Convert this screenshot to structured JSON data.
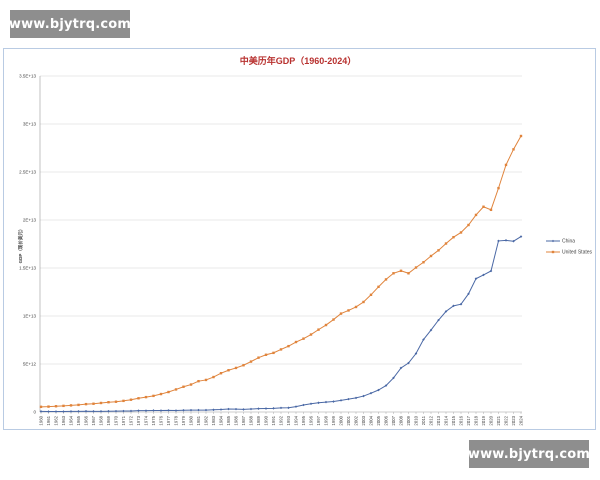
{
  "watermark": {
    "text": "www.bjytrq.com"
  },
  "chart_data": {
    "type": "line",
    "title": "中美历年GDP（1960-2024）",
    "ylabel": "GDP（现价美元）",
    "ylim": [
      0,
      35000000000000
    ],
    "yticks": [
      0,
      5000000000000,
      10000000000000,
      15000000000000,
      20000000000000,
      25000000000000,
      30000000000000,
      35000000000000
    ],
    "ytick_labels": [
      "0",
      "5E+12",
      "1E+13",
      "1.5E+13",
      "2E+13",
      "2.5E+13",
      "3E+13",
      "3.5E+13"
    ],
    "grid": true,
    "legend_position": "right",
    "x": [
      1960,
      1961,
      1962,
      1963,
      1964,
      1965,
      1966,
      1967,
      1968,
      1969,
      1970,
      1971,
      1972,
      1973,
      1974,
      1975,
      1976,
      1977,
      1978,
      1979,
      1980,
      1981,
      1982,
      1983,
      1984,
      1985,
      1986,
      1987,
      1988,
      1989,
      1990,
      1991,
      1992,
      1993,
      1994,
      1995,
      1996,
      1997,
      1998,
      1999,
      2000,
      2001,
      2002,
      2003,
      2004,
      2005,
      2006,
      2007,
      2008,
      2009,
      2010,
      2011,
      2012,
      2013,
      2014,
      2015,
      2016,
      2017,
      2018,
      2019,
      2020,
      2021,
      2022,
      2023,
      2024
    ],
    "series": [
      {
        "name": "China",
        "color": "#4a68a5",
        "values": [
          0.06,
          0.05,
          0.05,
          0.05,
          0.06,
          0.07,
          0.08,
          0.07,
          0.07,
          0.08,
          0.09,
          0.1,
          0.11,
          0.14,
          0.14,
          0.16,
          0.15,
          0.17,
          0.15,
          0.18,
          0.19,
          0.2,
          0.2,
          0.23,
          0.26,
          0.31,
          0.3,
          0.27,
          0.31,
          0.35,
          0.36,
          0.38,
          0.43,
          0.44,
          0.56,
          0.73,
          0.86,
          0.96,
          1.03,
          1.09,
          1.21,
          1.34,
          1.47,
          1.66,
          1.96,
          2.29,
          2.75,
          3.55,
          4.59,
          5.1,
          6.09,
          7.55,
          8.53,
          9.57,
          10.48,
          11.06,
          11.23,
          12.31,
          13.89,
          14.28,
          14.69,
          17.82,
          17.88,
          17.79,
          18.27
        ]
      },
      {
        "name": "United States",
        "color": "#e0843c",
        "values": [
          0.54,
          0.56,
          0.6,
          0.64,
          0.69,
          0.74,
          0.82,
          0.86,
          0.94,
          1.02,
          1.07,
          1.16,
          1.28,
          1.43,
          1.55,
          1.68,
          1.87,
          2.08,
          2.35,
          2.63,
          2.86,
          3.21,
          3.34,
          3.64,
          4.04,
          4.35,
          4.59,
          4.87,
          5.25,
          5.66,
          5.96,
          6.16,
          6.52,
          6.86,
          7.29,
          7.64,
          8.07,
          8.58,
          9.06,
          9.63,
          10.25,
          10.58,
          10.94,
          11.46,
          12.21,
          13.04,
          13.81,
          14.45,
          14.71,
          14.45,
          15.05,
          15.6,
          16.25,
          16.84,
          17.55,
          18.21,
          18.7,
          19.48,
          20.53,
          21.38,
          21.06,
          23.32,
          25.74,
          27.36,
          28.75
        ]
      }
    ]
  }
}
